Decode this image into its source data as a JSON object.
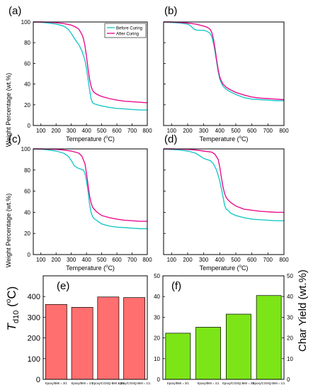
{
  "figure": {
    "y_label_tga": "Weight Percentage (wt.%)",
    "x_label_tga": "Temperature (",
    "x_label_unit_sup": "o",
    "x_label_unit_tail": "C)",
    "y_label_e_main": "T",
    "y_label_e_sub": "d10",
    "y_label_e_unit_open": " (",
    "y_label_e_unit_sup": "o",
    "y_label_e_unit_tail": "C)",
    "y_label_f_right": "Char Yield (wt.%)"
  },
  "colors": {
    "before": "#1dc7c9",
    "after": "#e8108e",
    "bar_e": "#ff6f6f",
    "bar_f": "#7ce517"
  },
  "chart_data": [
    {
      "panel": "(a)",
      "type": "line",
      "xlim": [
        50,
        800
      ],
      "ylim": [
        0,
        100
      ],
      "xticks": [
        100,
        200,
        300,
        400,
        500,
        600,
        700,
        800
      ],
      "yticks": [
        0,
        20,
        40,
        60,
        80,
        100
      ],
      "legend": "top-right",
      "series": [
        {
          "name": "Before Curing",
          "color": "#1dc7c9",
          "x": [
            50,
            100,
            150,
            200,
            250,
            280,
            300,
            330,
            350,
            370,
            390,
            400,
            410,
            420,
            430,
            440,
            450,
            470,
            500,
            550,
            600,
            650,
            700,
            750,
            800
          ],
          "y": [
            100,
            99.8,
            99,
            98,
            96,
            93,
            89,
            82,
            78,
            72,
            63,
            55,
            45,
            35,
            26,
            22,
            21,
            20,
            19,
            17.5,
            16.5,
            16,
            15.5,
            15,
            15
          ]
        },
        {
          "name": "After Curing",
          "color": "#e8108e",
          "x": [
            50,
            100,
            150,
            200,
            250,
            300,
            330,
            350,
            370,
            380,
            390,
            400,
            410,
            420,
            430,
            440,
            450,
            470,
            500,
            550,
            600,
            650,
            700,
            750,
            800
          ],
          "y": [
            100,
            100,
            99.8,
            99.3,
            98.5,
            97,
            95,
            93,
            88,
            84,
            77,
            67,
            55,
            45,
            38,
            34,
            32,
            30,
            28,
            26,
            24.5,
            23.5,
            23,
            22.5,
            22
          ]
        }
      ]
    },
    {
      "panel": "(b)",
      "type": "line",
      "xlim": [
        50,
        800
      ],
      "ylim": [
        0,
        100
      ],
      "xticks": [
        100,
        200,
        300,
        400,
        500,
        600,
        700,
        800
      ],
      "yticks": [
        0,
        20,
        40,
        60,
        80,
        100
      ],
      "series": [
        {
          "name": "Before Curing",
          "color": "#1dc7c9",
          "x": [
            50,
            100,
            150,
            200,
            220,
            240,
            260,
            300,
            320,
            340,
            350,
            360,
            370,
            380,
            390,
            400,
            410,
            420,
            440,
            460,
            500,
            550,
            600,
            650,
            700,
            750,
            800
          ],
          "y": [
            100,
            99.5,
            99,
            98,
            96,
            93,
            92,
            92,
            91,
            89,
            86,
            80,
            72,
            62,
            52,
            45,
            41,
            38,
            35,
            33,
            30,
            27,
            25.5,
            25,
            24.5,
            24,
            24
          ]
        },
        {
          "name": "After Curing",
          "color": "#e8108e",
          "x": [
            50,
            100,
            150,
            200,
            250,
            300,
            320,
            340,
            350,
            360,
            370,
            380,
            390,
            400,
            410,
            420,
            440,
            460,
            500,
            550,
            600,
            650,
            700,
            750,
            800
          ],
          "y": [
            100,
            100,
            99.5,
            99,
            98,
            96,
            95,
            93,
            90,
            84,
            75,
            64,
            54,
            47,
            43,
            40,
            37,
            35,
            32,
            29.5,
            27.5,
            26.5,
            26,
            25.5,
            25
          ]
        }
      ]
    },
    {
      "panel": "(c)",
      "type": "line",
      "xlim": [
        50,
        800
      ],
      "ylim": [
        0,
        100
      ],
      "xticks": [
        100,
        200,
        300,
        400,
        500,
        600,
        700,
        800
      ],
      "yticks": [
        0,
        20,
        40,
        60,
        80,
        100
      ],
      "series": [
        {
          "name": "Before Curing",
          "color": "#1dc7c9",
          "x": [
            50,
            100,
            150,
            200,
            250,
            280,
            300,
            320,
            340,
            360,
            380,
            390,
            400,
            410,
            420,
            430,
            440,
            450,
            470,
            500,
            550,
            600,
            650,
            700,
            750,
            800
          ],
          "y": [
            100,
            99.8,
            99,
            98,
            96,
            93,
            89,
            84,
            82,
            81,
            80,
            77,
            70,
            60,
            48,
            40,
            36,
            34,
            32,
            29,
            27,
            26,
            25.5,
            25,
            24.5,
            24.5
          ]
        },
        {
          "name": "After Curing",
          "color": "#e8108e",
          "x": [
            50,
            100,
            150,
            200,
            250,
            300,
            350,
            370,
            390,
            400,
            410,
            420,
            430,
            440,
            450,
            470,
            500,
            550,
            600,
            650,
            700,
            750,
            800
          ],
          "y": [
            100,
            100,
            99.8,
            99.5,
            99,
            98,
            96,
            93,
            86,
            77,
            66,
            56,
            49,
            45,
            43,
            40,
            37,
            35,
            33.5,
            32.5,
            32,
            31.5,
            31.5
          ]
        }
      ]
    },
    {
      "panel": "(d)",
      "type": "line",
      "xlim": [
        50,
        800
      ],
      "ylim": [
        0,
        100
      ],
      "xticks": [
        100,
        200,
        300,
        400,
        500,
        600,
        700,
        800
      ],
      "yticks": [
        0,
        20,
        40,
        60,
        80,
        100
      ],
      "series": [
        {
          "name": "Before Curing",
          "color": "#1dc7c9",
          "x": [
            50,
            100,
            150,
            200,
            250,
            280,
            300,
            320,
            340,
            360,
            380,
            400,
            420,
            430,
            440,
            450,
            470,
            500,
            550,
            600,
            650,
            700,
            750,
            800
          ],
          "y": [
            100,
            99.5,
            99,
            98,
            96,
            93,
            91,
            90,
            89,
            86,
            80,
            70,
            55,
            47,
            43,
            42,
            39,
            37,
            35,
            33.5,
            33,
            32.5,
            32,
            32
          ]
        },
        {
          "name": "After Curing",
          "color": "#e8108e",
          "x": [
            50,
            100,
            150,
            200,
            250,
            300,
            350,
            370,
            390,
            400,
            410,
            420,
            430,
            440,
            450,
            470,
            500,
            550,
            600,
            650,
            700,
            750,
            800
          ],
          "y": [
            100,
            100,
            99.8,
            99.5,
            99,
            98,
            97,
            95,
            90,
            83,
            73,
            64,
            58,
            54,
            52,
            49,
            46,
            43,
            42,
            41,
            40.5,
            40,
            40
          ]
        }
      ]
    },
    {
      "panel": "(e)",
      "type": "bar",
      "ylim": [
        0,
        500
      ],
      "yticks": [
        0,
        100,
        200,
        300,
        400
      ],
      "categories": [
        "Epoxy/BMI = 3/1",
        "Epoxy/BMI = 1/1",
        "Epoxy/COSiQ-BMI = 3/1",
        "Epoxy/COSiQ-BMI = 1/1"
      ],
      "values": [
        362,
        348,
        398,
        395
      ],
      "color": "#ff6f6f"
    },
    {
      "panel": "(f)",
      "type": "bar",
      "ylim": [
        0,
        50
      ],
      "yticks": [
        0,
        10,
        20,
        30,
        40,
        50
      ],
      "categories": [
        "Epoxy/BMI = 3/1",
        "Epoxy/BMI = 1/1",
        "Epoxy/COSiQ-BMI = 3/1",
        "Epoxy/COSiQ-BMI = 1/1"
      ],
      "values": [
        22.3,
        25.2,
        31.5,
        40.5
      ],
      "color": "#7ce517"
    }
  ]
}
